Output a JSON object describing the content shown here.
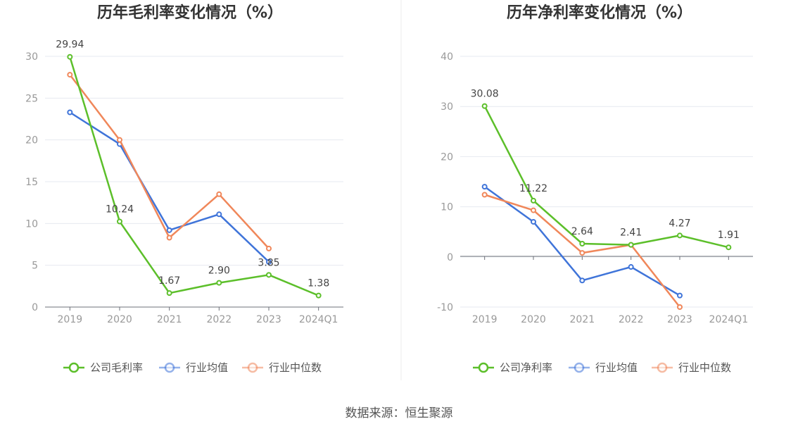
{
  "chart_data": [
    {
      "type": "line",
      "title": "历年毛利率变化情况（%）",
      "categories": [
        "2019",
        "2020",
        "2021",
        "2022",
        "2023",
        "2024Q1"
      ],
      "ylim": [
        0,
        30
      ],
      "yticks": [
        "0",
        "5",
        "10",
        "15",
        "20",
        "25",
        "30"
      ],
      "grid": true,
      "legend_position": "bottom",
      "series": [
        {
          "name": "公司毛利率",
          "color": "#5cbf2a",
          "values": [
            29.94,
            10.24,
            1.67,
            2.9,
            3.85,
            1.38
          ],
          "labels": [
            "29.94",
            "10.24",
            "1.67",
            "2.90",
            "3.85",
            "1.38"
          ]
        },
        {
          "name": "行业均值",
          "color": "#3f74d9",
          "values": [
            23.3,
            19.5,
            9.2,
            11.1,
            5.4,
            null
          ]
        },
        {
          "name": "行业中位数",
          "color": "#f0875a",
          "values": [
            27.8,
            20.0,
            8.3,
            13.5,
            7.0,
            null
          ]
        }
      ]
    },
    {
      "type": "line",
      "title": "历年净利率变化情况（%）",
      "categories": [
        "2019",
        "2020",
        "2021",
        "2022",
        "2023",
        "2024Q1"
      ],
      "ylim": [
        -10,
        40
      ],
      "yticks": [
        "-10",
        "0",
        "10",
        "20",
        "30",
        "40"
      ],
      "grid": true,
      "legend_position": "bottom",
      "series": [
        {
          "name": "公司净利率",
          "color": "#5cbf2a",
          "values": [
            30.08,
            11.22,
            2.64,
            2.41,
            4.27,
            1.91
          ],
          "labels": [
            "30.08",
            "11.22",
            "2.64",
            "2.41",
            "4.27",
            "1.91"
          ]
        },
        {
          "name": "行业均值",
          "color": "#3f74d9",
          "values": [
            14.0,
            7.0,
            -4.7,
            -2.0,
            -7.7,
            null
          ]
        },
        {
          "name": "行业中位数",
          "color": "#f0875a",
          "values": [
            12.4,
            9.3,
            0.8,
            2.4,
            -10.0,
            null
          ]
        }
      ]
    }
  ],
  "source": "数据来源：恒生聚源"
}
